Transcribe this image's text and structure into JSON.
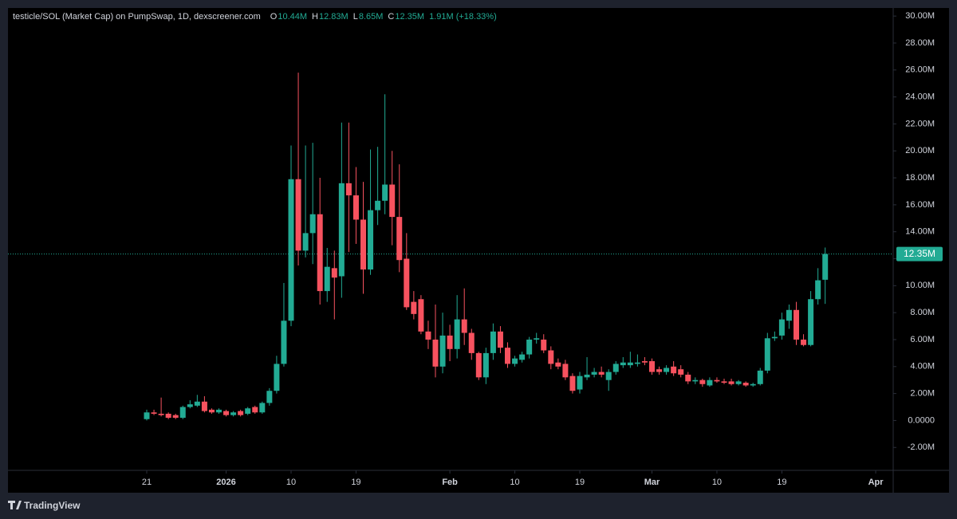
{
  "chart_data": {
    "type": "candlestick",
    "title": "testicle/SOL (Market Cap) on PumpSwap, 1D, dexscreener.com",
    "ohlc_legend": [
      {
        "key": "O",
        "value": "10.44M"
      },
      {
        "key": "H",
        "value": "12.83M"
      },
      {
        "key": "L",
        "value": "8.65M"
      },
      {
        "key": "C",
        "value": "12.35M"
      }
    ],
    "change": "1.91M (+18.33%)",
    "x": [
      "Dec 21",
      "Dec 22",
      "Dec 23",
      "Dec 24",
      "Dec 25",
      "Dec 26",
      "Dec 27",
      "Dec 28",
      "Dec 29",
      "Dec 30",
      "Dec 31",
      "Jan 1",
      "Jan 2",
      "Jan 3",
      "Jan 4",
      "Jan 5",
      "Jan 6",
      "Jan 7",
      "Jan 8",
      "Jan 9",
      "Jan 10",
      "Jan 11",
      "Jan 12",
      "Jan 13",
      "Jan 14",
      "Jan 15",
      "Jan 16",
      "Jan 17",
      "Jan 18",
      "Jan 19",
      "Jan 20",
      "Jan 21",
      "Jan 22",
      "Jan 23",
      "Jan 24",
      "Jan 25",
      "Jan 26",
      "Jan 27",
      "Jan 28",
      "Jan 29",
      "Jan 30",
      "Jan 31",
      "Feb 1",
      "Feb 2",
      "Feb 3",
      "Feb 4",
      "Feb 5",
      "Feb 6",
      "Feb 7",
      "Feb 8",
      "Feb 9",
      "Feb 10",
      "Feb 11",
      "Feb 12",
      "Feb 13",
      "Feb 14",
      "Feb 15",
      "Feb 16",
      "Feb 17",
      "Feb 18",
      "Feb 19",
      "Feb 20",
      "Feb 21",
      "Feb 22",
      "Feb 23",
      "Feb 24",
      "Feb 25",
      "Feb 26",
      "Feb 27",
      "Feb 28",
      "Mar 1",
      "Mar 2",
      "Mar 3",
      "Mar 4",
      "Mar 5",
      "Mar 6",
      "Mar 7",
      "Mar 8",
      "Mar 9",
      "Mar 10",
      "Mar 11",
      "Mar 12",
      "Mar 13",
      "Mar 14",
      "Mar 15",
      "Mar 16",
      "Mar 17",
      "Mar 18",
      "Mar 19",
      "Mar 20",
      "Mar 21",
      "Mar 22",
      "Mar 23",
      "Mar 24",
      "Mar 25"
    ],
    "open": [
      0.1,
      0.6,
      0.5,
      0.5,
      0.4,
      0.2,
      1.0,
      1.1,
      1.4,
      0.8,
      0.6,
      0.7,
      0.4,
      0.7,
      0.5,
      1.0,
      0.6,
      1.3,
      2.2,
      4.2,
      7.4,
      17.9,
      12.6,
      13.9,
      15.3,
      9.6,
      11.3,
      10.7,
      17.6,
      16.7,
      14.9,
      11.2,
      15.6,
      16.3,
      17.5,
      15.1,
      12.0,
      8.8,
      9.0,
      6.6,
      6.0,
      4.0,
      6.3,
      5.3,
      7.5,
      6.5,
      5.0,
      3.2,
      5.0,
      6.6,
      5.4,
      4.2,
      4.5,
      4.9,
      6.0,
      6.0,
      5.2,
      4.3,
      4.2,
      3.3,
      2.3,
      3.2,
      3.4,
      3.6,
      3.0,
      3.6,
      4.1,
      4.1,
      4.2,
      4.4,
      4.4,
      3.8,
      3.6,
      4.0,
      3.8,
      3.4,
      2.9,
      3.0,
      2.6,
      3.0,
      2.9,
      2.9,
      2.7,
      2.8,
      2.6,
      2.7,
      3.7,
      6.1,
      6.3,
      7.4,
      8.2,
      6.0,
      5.6,
      9.0,
      10.44
    ],
    "high": [
      0.8,
      0.8,
      1.7,
      0.6,
      0.5,
      1.1,
      1.5,
      1.9,
      1.8,
      0.9,
      0.9,
      0.8,
      0.7,
      0.8,
      1.0,
      1.1,
      1.4,
      2.4,
      4.8,
      10.2,
      20.4,
      25.8,
      20.4,
      20.6,
      18.0,
      12.8,
      12.6,
      22.1,
      22.1,
      18.8,
      17.7,
      20.1,
      20.3,
      24.2,
      20.0,
      19.0,
      13.9,
      9.6,
      9.3,
      7.4,
      8.6,
      8.0,
      7.1,
      9.3,
      9.8,
      6.8,
      5.1,
      5.4,
      7.2,
      7.0,
      5.8,
      4.8,
      5.1,
      6.2,
      6.5,
      6.4,
      5.5,
      4.6,
      4.5,
      3.5,
      3.6,
      4.7,
      3.9,
      4.0,
      3.8,
      4.4,
      4.7,
      5.1,
      4.9,
      4.7,
      4.6,
      4.0,
      4.1,
      4.4,
      4.1,
      3.6,
      3.2,
      3.1,
      3.2,
      3.2,
      3.1,
      3.1,
      3.0,
      2.9,
      2.8,
      3.9,
      6.5,
      6.6,
      8.0,
      8.6,
      8.8,
      6.4,
      9.6,
      11.3,
      12.83
    ],
    "low": [
      0.0,
      0.4,
      0.3,
      0.1,
      0.1,
      0.1,
      0.9,
      1.0,
      0.6,
      0.5,
      0.5,
      0.3,
      0.3,
      0.3,
      0.4,
      0.5,
      0.5,
      1.1,
      2.0,
      4.0,
      7.0,
      11.5,
      12.1,
      11.6,
      8.6,
      8.8,
      7.5,
      9.1,
      12.5,
      13.1,
      9.4,
      10.8,
      14.5,
      15.3,
      13.0,
      11.0,
      8.2,
      7.5,
      6.4,
      5.3,
      3.2,
      3.5,
      4.4,
      4.6,
      5.6,
      4.5,
      3.0,
      2.7,
      4.5,
      5.0,
      3.9,
      4.0,
      4.3,
      4.6,
      5.7,
      5.0,
      3.8,
      3.8,
      3.0,
      2.0,
      2.0,
      3.0,
      3.2,
      3.2,
      2.2,
      3.4,
      3.9,
      3.9,
      4.0,
      4.1,
      3.4,
      3.4,
      3.4,
      3.3,
      3.2,
      2.7,
      2.7,
      2.5,
      2.5,
      2.8,
      2.7,
      2.6,
      2.6,
      2.5,
      2.5,
      2.6,
      3.5,
      5.9,
      6.0,
      6.8,
      5.6,
      5.5,
      5.5,
      8.6,
      8.65
    ],
    "close": [
      0.6,
      0.5,
      0.4,
      0.2,
      0.2,
      1.0,
      1.2,
      1.4,
      0.7,
      0.6,
      0.8,
      0.4,
      0.6,
      0.4,
      0.9,
      0.6,
      1.3,
      2.2,
      4.2,
      7.4,
      17.9,
      12.6,
      13.9,
      15.3,
      9.6,
      11.4,
      10.6,
      17.6,
      16.7,
      14.9,
      11.2,
      15.6,
      16.3,
      17.5,
      15.1,
      11.9,
      8.4,
      7.9,
      6.6,
      6.0,
      4.0,
      6.3,
      5.3,
      7.5,
      6.5,
      5.0,
      3.2,
      5.0,
      6.6,
      5.4,
      4.2,
      4.6,
      4.9,
      6.0,
      6.1,
      5.2,
      4.2,
      4.0,
      3.2,
      2.2,
      3.3,
      3.4,
      3.6,
      3.4,
      3.6,
      4.2,
      4.3,
      4.3,
      4.3,
      4.3,
      3.6,
      3.6,
      3.9,
      3.5,
      3.4,
      2.9,
      3.0,
      2.7,
      3.0,
      2.9,
      2.8,
      2.7,
      2.9,
      2.6,
      2.7,
      3.7,
      6.1,
      6.2,
      7.5,
      8.2,
      6.0,
      5.6,
      9.0,
      10.4,
      12.35
    ],
    "up_color": "#22ab94",
    "down_color": "#f7525f",
    "last_price": {
      "value": 12.35,
      "label": "12.35M"
    },
    "ylim": [
      -3.7,
      30.6
    ],
    "yticks": [
      {
        "value": -2,
        "label": "-2.00M"
      },
      {
        "value": 0,
        "label": "0.0000"
      },
      {
        "value": 2,
        "label": "2.00M"
      },
      {
        "value": 4,
        "label": "4.00M"
      },
      {
        "value": 6,
        "label": "6.00M"
      },
      {
        "value": 8,
        "label": "8.00M"
      },
      {
        "value": 10,
        "label": "10.00M"
      },
      {
        "value": 12,
        "label": "12.00M"
      },
      {
        "value": 14,
        "label": "14.00M"
      },
      {
        "value": 16,
        "label": "16.00M"
      },
      {
        "value": 18,
        "label": "18.00M"
      },
      {
        "value": 20,
        "label": "20.00M"
      },
      {
        "value": 22,
        "label": "22.00M"
      },
      {
        "value": 24,
        "label": "24.00M"
      },
      {
        "value": 26,
        "label": "26.00M"
      },
      {
        "value": 28,
        "label": "28.00M"
      },
      {
        "value": 30,
        "label": "30.00M"
      }
    ],
    "xticks": [
      {
        "value": "Dec 21",
        "label": "21"
      },
      {
        "value": "Jan 1",
        "label": "2026"
      },
      {
        "value": "Jan 10",
        "label": "10"
      },
      {
        "value": "Jan 19",
        "label": "19"
      },
      {
        "value": "Feb 1",
        "label": "Feb"
      },
      {
        "value": "Feb 10",
        "label": "10"
      },
      {
        "value": "Feb 19",
        "label": "19"
      },
      {
        "value": "Mar 1",
        "label": "Mar"
      },
      {
        "value": "Mar 10",
        "label": "10"
      },
      {
        "value": "Mar 19",
        "label": "19"
      },
      {
        "value": "Apr 1",
        "label": "Apr"
      }
    ],
    "grid": false,
    "branding": "TradingView"
  }
}
